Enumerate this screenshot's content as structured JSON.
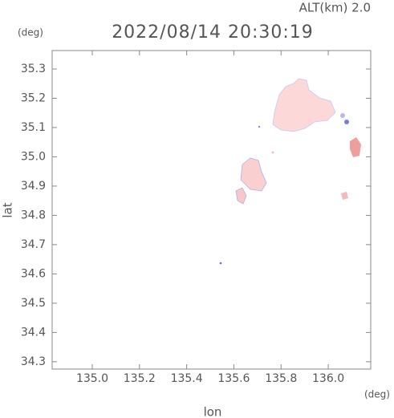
{
  "chart_data": {
    "type": "map",
    "title": "2022/08/14 20:30:19",
    "annotation": "ALT(km)  2.0",
    "xlabel": "lon",
    "ylabel": "lat",
    "xunit": "(deg)",
    "yunit": "(deg)",
    "xlim": [
      134.83,
      136.18
    ],
    "ylim": [
      34.275,
      35.363
    ],
    "xticks": [
      {
        "value": 135.0,
        "label": "135.0"
      },
      135.2,
      135.4,
      135.6,
      135.8,
      {
        "value": 136.0,
        "label": "136.0"
      }
    ],
    "yticks": [
      34.3,
      34.4,
      34.5,
      34.6,
      34.7,
      34.8,
      34.9,
      {
        "value": 35.0,
        "label": "35.0"
      },
      35.1,
      35.2,
      35.3
    ]
  }
}
